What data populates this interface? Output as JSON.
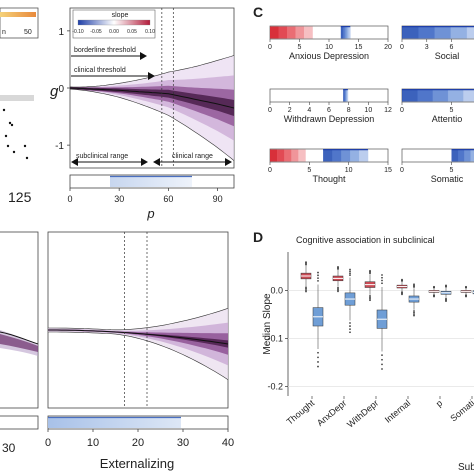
{
  "panel_labels": {
    "c": "C",
    "d": "D"
  },
  "top_left_partial": {
    "legend_tick": "50",
    "legend_word": "n",
    "x_tick": "125"
  },
  "panel_b_top": {
    "chart_data": {
      "type": "line",
      "xlabel": "p",
      "ylabel": "g",
      "xlim": [
        0,
        100
      ],
      "ylim": [
        -1.4,
        1.4
      ],
      "x_ticks": [
        "0",
        "30",
        "60",
        "90"
      ],
      "y_ticks": [
        "1",
        "0",
        "-1"
      ],
      "colorbar": {
        "title": "slope",
        "ticks": [
          "-0.10",
          "-0.05",
          "0.00",
          "0.05",
          "0.10"
        ],
        "colors": [
          "#1f3fa8",
          "#ffffff",
          "#b31b3a"
        ]
      },
      "annotations": {
        "borderline": "borderline threshold",
        "clinical": "clinical threshold",
        "subclinical_range": "subclinical range",
        "clinical_range": "clinical range"
      },
      "thresholds_x": [
        56,
        63
      ],
      "median_line": {
        "x": [
          0,
          30,
          60,
          90,
          100
        ],
        "y": [
          0.0,
          -0.04,
          -0.1,
          -0.28,
          -0.35
        ]
      }
    }
  },
  "panel_c": {
    "rows": [
      {
        "left": {
          "label": "Anxious Depression",
          "ticks": [
            "0",
            "5",
            "10",
            "15",
            "20"
          ]
        },
        "right": {
          "label": "Social",
          "ticks": [
            "0",
            "3",
            "6"
          ]
        }
      },
      {
        "left": {
          "label": "Withdrawn Depression",
          "ticks": [
            "0",
            "2",
            "4",
            "6",
            "8",
            "10",
            "12"
          ]
        },
        "right": {
          "label": "Attentio",
          "ticks": [
            "0",
            "5"
          ]
        }
      },
      {
        "left": {
          "label": "Thought",
          "ticks": [
            "0",
            "5",
            "10",
            "15"
          ]
        },
        "right": {
          "label": "Somatic",
          "ticks": [
            "0",
            "5"
          ]
        }
      }
    ]
  },
  "panel_bottom_left": {
    "x_ticks": [
      "30"
    ]
  },
  "panel_bottom_mid": {
    "chart_data": {
      "type": "line",
      "xlabel": "Externalizing",
      "xlim": [
        0,
        40
      ],
      "x_ticks": [
        "0",
        "10",
        "20",
        "30",
        "40"
      ],
      "thresholds_x": [
        17,
        22
      ]
    }
  },
  "panel_d": {
    "chart_data": {
      "type": "box",
      "title": "Cognitive association in subclinical",
      "ylabel": "Median Slope",
      "xlabel": "Subc",
      "ylim": [
        -0.22,
        0.08
      ],
      "y_ticks": [
        "0.0",
        "-0.1",
        "-0.2"
      ],
      "categories": [
        "Thought",
        "AnxDepr",
        "WithDepr",
        "Internal",
        "p",
        "Somati"
      ],
      "series": [
        {
          "name": "",
          "color": "#c94b55",
          "medians": [
            0.03,
            0.025,
            0.012,
            0.008,
            -0.002,
            -0.002
          ]
        },
        {
          "name": "",
          "color": "#6f9ed6",
          "medians": [
            -0.055,
            -0.018,
            -0.06,
            -0.018,
            -0.005,
            -0.004
          ]
        }
      ]
    }
  }
}
